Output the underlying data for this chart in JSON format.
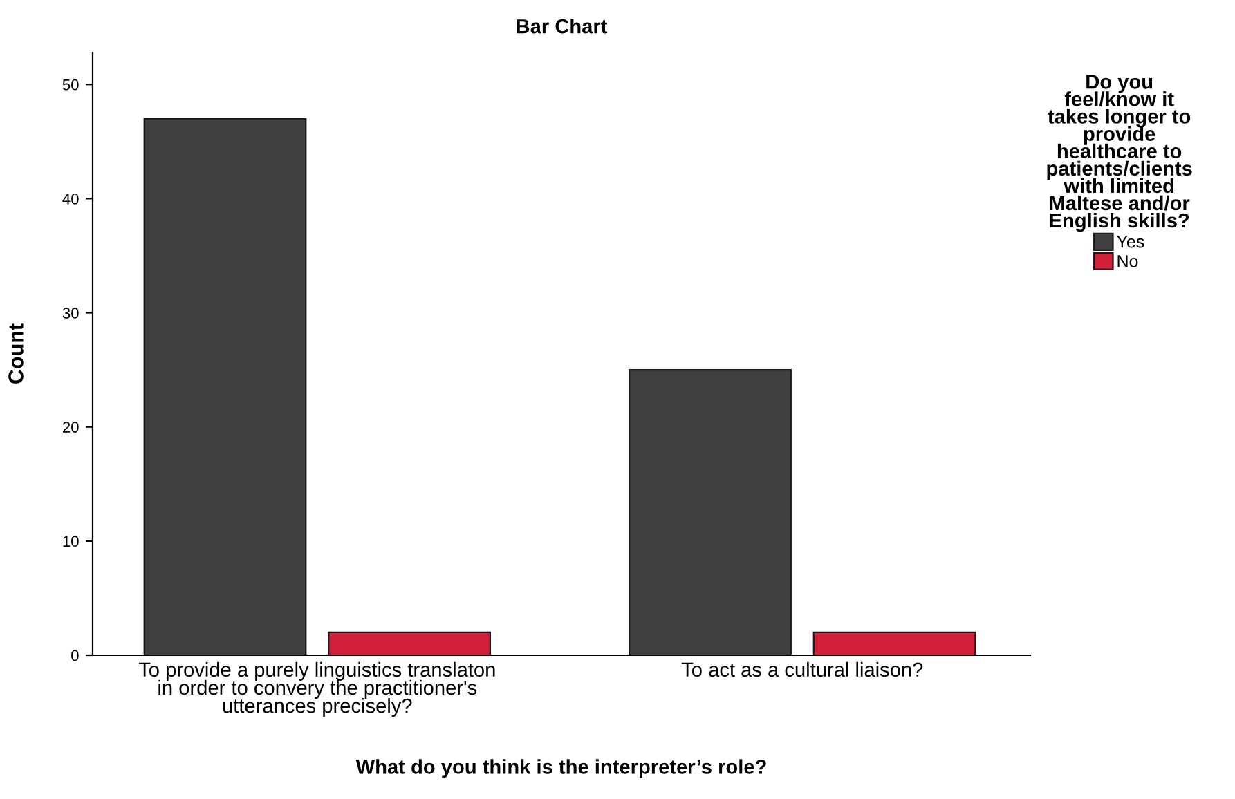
{
  "chart_data": {
    "type": "bar",
    "title": "Bar Chart",
    "xlabel": "What do you think is the interpreter’s role?",
    "ylabel": "Count",
    "legend_title": "Do you\nfeel/know it\ntakes longer to\nprovide\nhealthcare to\npatients/clients\nwith limited\nMaltese and/or\nEnglish skills?",
    "categories": [
      "To provide a purely linguistics translaton\nin order to convery the practitioner's\nutterances precisely?",
      "To act as a cultural liaison?"
    ],
    "series": [
      {
        "name": "Yes",
        "color": "#404043",
        "values": [
          47,
          25
        ]
      },
      {
        "name": "No",
        "color": "#d21f3a",
        "values": [
          2,
          2
        ]
      }
    ],
    "ylim": [
      0,
      52.8
    ],
    "yticks": [
      0,
      10,
      20,
      30,
      40,
      50
    ],
    "grid": false,
    "legend": "right"
  }
}
